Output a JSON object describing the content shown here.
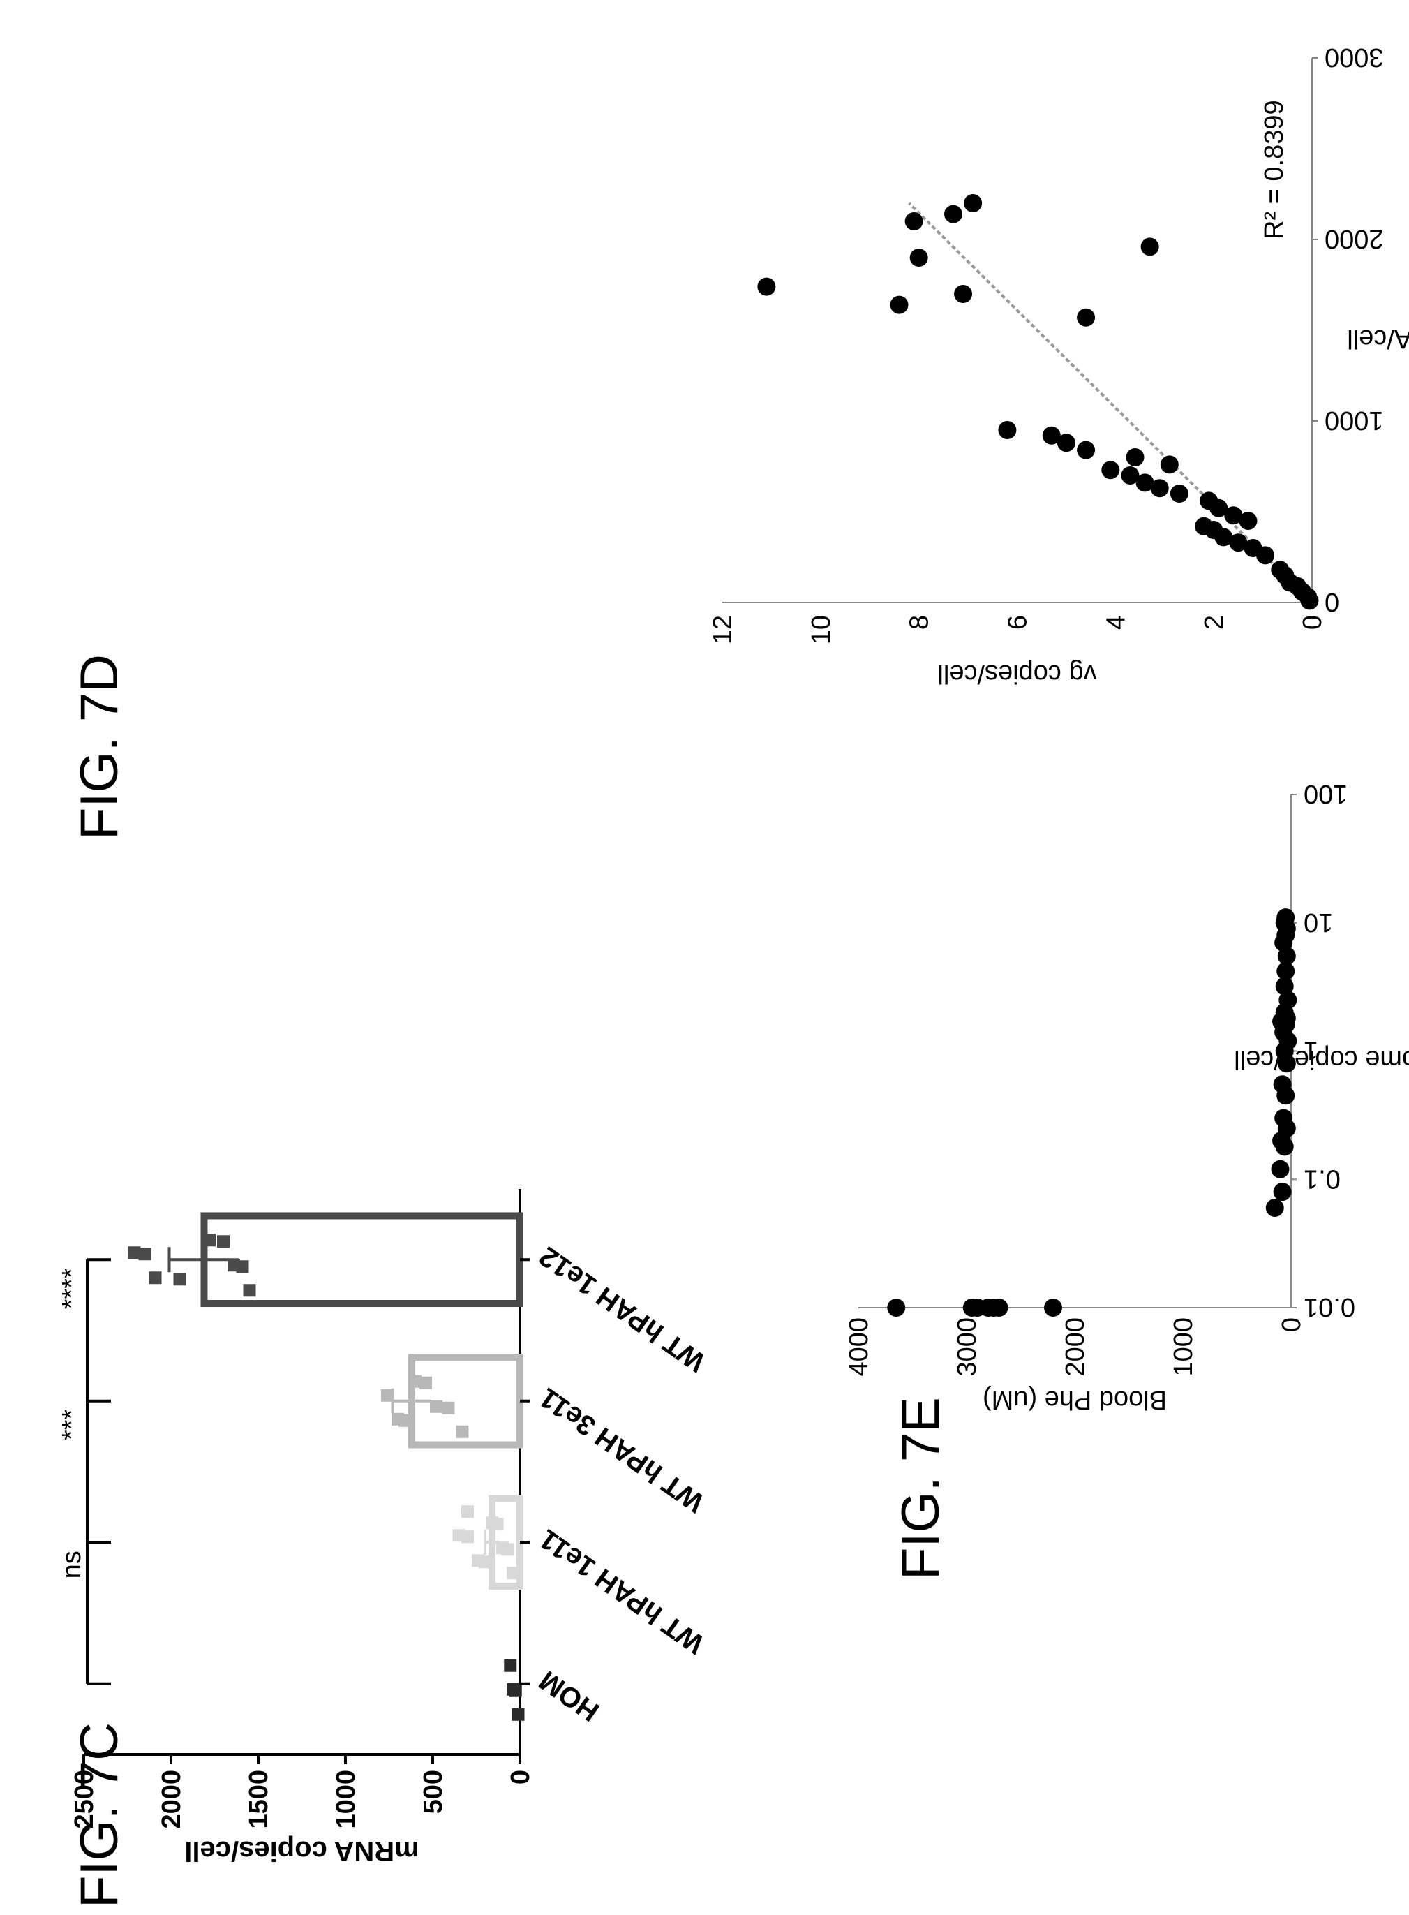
{
  "figures": {
    "c": {
      "label": "FIG. 7C"
    },
    "d": {
      "label": "FIG. 7D"
    },
    "e": {
      "label": "FIG. 7E"
    }
  },
  "chart_data": [
    {
      "id": "7C",
      "type": "bar",
      "ylabel": "mRNA copies/cell",
      "ylim": [
        0,
        2500
      ],
      "yticks": [
        0,
        500,
        1000,
        1500,
        2000,
        2500
      ],
      "categories": [
        "HOM",
        "WT hPAH 1e11",
        "WT hPAH 3e11",
        "WT hPAH 1e12"
      ],
      "values": [
        0,
        160,
        620,
        1810
      ],
      "errors": [
        0,
        40,
        110,
        200
      ],
      "colors": [
        "#2b2b2b",
        "#d8d8d8",
        "#b8b8b8",
        "#4a4a4a"
      ],
      "points": [
        [
          10,
          25,
          40,
          55
        ],
        [
          40,
          70,
          100,
          130,
          160,
          200,
          240,
          300,
          350,
          300
        ],
        [
          330,
          410,
          480,
          540,
          600,
          660,
          700,
          760
        ],
        [
          1550,
          1590,
          1640,
          1700,
          1780,
          1950,
          2090,
          2150,
          2210
        ]
      ],
      "significance": [
        "ns",
        "***",
        "****"
      ]
    },
    {
      "id": "7D",
      "type": "scatter",
      "xlabel": "mRNA/cell",
      "ylabel": "vg copies/cell",
      "xlim": [
        0,
        3000
      ],
      "ylim": [
        0,
        12
      ],
      "xticks": [
        0,
        1000,
        2000,
        3000
      ],
      "yticks": [
        0,
        2,
        4,
        6,
        8,
        10,
        12
      ],
      "annotation": "R² = 0.8399",
      "trendline": [
        [
          0,
          0
        ],
        [
          2200,
          8.2
        ]
      ],
      "points": [
        [
          10,
          0.05
        ],
        [
          30,
          0.08
        ],
        [
          60,
          0.2
        ],
        [
          90,
          0.3
        ],
        [
          110,
          0.45
        ],
        [
          150,
          0.55
        ],
        [
          180,
          0.65
        ],
        [
          260,
          0.95
        ],
        [
          300,
          1.2
        ],
        [
          330,
          1.5
        ],
        [
          360,
          1.8
        ],
        [
          400,
          2.0
        ],
        [
          420,
          2.2
        ],
        [
          450,
          1.3
        ],
        [
          480,
          1.6
        ],
        [
          520,
          1.9
        ],
        [
          560,
          2.1
        ],
        [
          600,
          2.7
        ],
        [
          630,
          3.1
        ],
        [
          660,
          3.4
        ],
        [
          700,
          3.7
        ],
        [
          730,
          4.1
        ],
        [
          760,
          2.9
        ],
        [
          800,
          3.6
        ],
        [
          840,
          4.6
        ],
        [
          880,
          5.0
        ],
        [
          920,
          5.3
        ],
        [
          950,
          6.2
        ],
        [
          1570,
          4.6
        ],
        [
          1640,
          8.4
        ],
        [
          1700,
          7.1
        ],
        [
          1740,
          11.1
        ],
        [
          1900,
          8.0
        ],
        [
          1960,
          3.3
        ],
        [
          2100,
          8.1
        ],
        [
          2140,
          7.3
        ],
        [
          2200,
          6.9
        ]
      ]
    },
    {
      "id": "7E",
      "type": "scatter",
      "xscale": "log",
      "xlabel": "Vector genome copies/cell",
      "ylabel": "Blood Phe (uM)",
      "xlim": [
        0.01,
        100
      ],
      "ylim": [
        0,
        4000
      ],
      "xticks": [
        0.01,
        0.1,
        1,
        10,
        100
      ],
      "xticklabels": [
        "0.01",
        "0.1",
        "1",
        "10",
        "100"
      ],
      "yticks": [
        0,
        1000,
        2000,
        3000,
        4000
      ],
      "points": [
        [
          0.01,
          3650
        ],
        [
          0.01,
          2950
        ],
        [
          0.01,
          2900
        ],
        [
          0.01,
          2800
        ],
        [
          0.01,
          2750
        ],
        [
          0.01,
          2700
        ],
        [
          0.01,
          2200
        ],
        [
          0.06,
          150
        ],
        [
          0.08,
          80
        ],
        [
          0.12,
          100
        ],
        [
          0.18,
          60
        ],
        [
          0.2,
          90
        ],
        [
          0.25,
          40
        ],
        [
          0.3,
          70
        ],
        [
          0.45,
          50
        ],
        [
          0.55,
          80
        ],
        [
          0.8,
          40
        ],
        [
          1.0,
          60
        ],
        [
          1.2,
          30
        ],
        [
          1.4,
          70
        ],
        [
          1.6,
          50
        ],
        [
          1.7,
          90
        ],
        [
          1.8,
          40
        ],
        [
          2.0,
          60
        ],
        [
          2.5,
          30
        ],
        [
          3.2,
          60
        ],
        [
          4.2,
          50
        ],
        [
          5.5,
          40
        ],
        [
          7.0,
          70
        ],
        [
          8.0,
          50
        ],
        [
          9.0,
          40
        ],
        [
          10.0,
          60
        ],
        [
          11.0,
          50
        ]
      ]
    }
  ]
}
